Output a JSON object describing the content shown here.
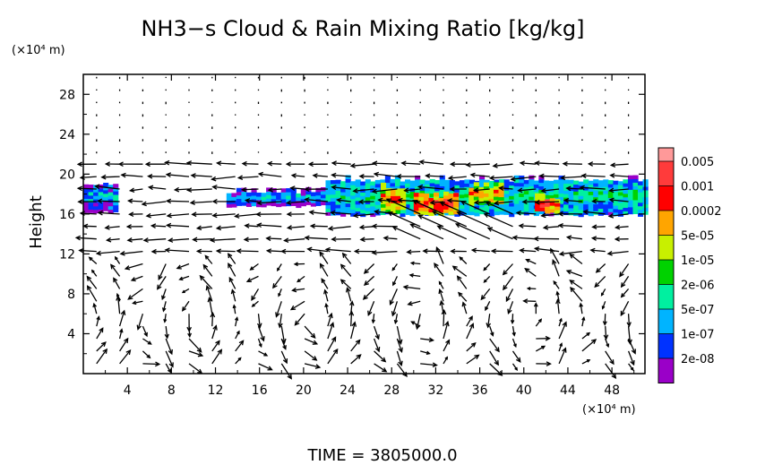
{
  "chart_data": {
    "type": "heatmap",
    "title": "NH3−s Cloud & Rain Mixing Ratio [kg/kg]",
    "ylabel": "Height",
    "y_unit": "(×10⁴ m)",
    "x_unit": "(×10⁴ m)",
    "footer": "TIME = 3805000.0",
    "xlim": [
      0,
      51
    ],
    "ylim": [
      0,
      30
    ],
    "x_ticks": [
      4,
      8,
      12,
      16,
      20,
      24,
      28,
      32,
      36,
      40,
      44,
      48
    ],
    "y_ticks": [
      4,
      8,
      12,
      16,
      20,
      24,
      28
    ],
    "grid": false,
    "legend": "right",
    "colorbar": {
      "labels": [
        "0.005",
        "0.001",
        "0.0002",
        "5e-05",
        "1e-05",
        "2e-06",
        "5e-07",
        "1e-07",
        "2e-08"
      ],
      "colors": [
        "#ff3b3b",
        "#ff0000",
        "#ffa500",
        "#c8f000",
        "#00d200",
        "#00f0a0",
        "#00b4ff",
        "#0032ff",
        "#9a00c8"
      ],
      "top_color": "#ff9999"
    },
    "cloud_layer": [
      {
        "x0": 0,
        "x1": 3,
        "ybot": 16.2,
        "ytop": 18.8,
        "level": 2
      },
      {
        "x0": 13,
        "x1": 22,
        "ybot": 16.8,
        "ytop": 18.2,
        "level": 2
      },
      {
        "x0": 22,
        "x1": 51,
        "ybot": 15.9,
        "ytop": 19.3,
        "level": 3
      },
      {
        "x0": 27,
        "x1": 29,
        "ybot": 16.2,
        "ytop": 18.6,
        "level": 6
      },
      {
        "x0": 30,
        "x1": 34,
        "ybot": 16.0,
        "ytop": 17.8,
        "level": 7
      },
      {
        "x0": 35,
        "x1": 38,
        "ybot": 17.0,
        "ytop": 18.8,
        "level": 6
      },
      {
        "x0": 41,
        "x1": 43,
        "ybot": 16.2,
        "ytop": 17.6,
        "level": 7
      }
    ]
  }
}
